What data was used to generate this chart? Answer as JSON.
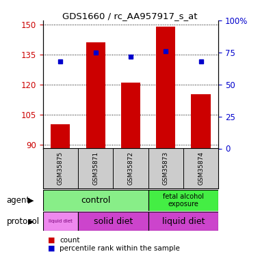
{
  "title": "GDS1660 / rc_AA957917_s_at",
  "samples": [
    "GSM35875",
    "GSM35871",
    "GSM35872",
    "GSM35873",
    "GSM35874"
  ],
  "count_values": [
    100,
    141,
    121,
    149,
    115
  ],
  "percentile_values": [
    68,
    75,
    72,
    76,
    68
  ],
  "ylim_left": [
    88,
    152
  ],
  "yticks_left": [
    90,
    105,
    120,
    135,
    150
  ],
  "ylim_right": [
    0,
    100
  ],
  "yticks_right": [
    0,
    25,
    50,
    75,
    100
  ],
  "bar_color": "#cc0000",
  "dot_color": "#0000cc",
  "sample_bg": "#cccccc",
  "agent_control_color": "#88ee88",
  "agent_fetal_color": "#44ee44",
  "protocol_liquid1_color": "#ee88ee",
  "protocol_solid_color": "#cc44cc",
  "protocol_liquid2_color": "#cc44cc",
  "agent_label": "agent",
  "protocol_label": "protocol",
  "legend_count_label": "count",
  "legend_pct_label": "percentile rank within the sample",
  "ylabel_left_color": "#cc0000",
  "ylabel_right_color": "#0000cc"
}
